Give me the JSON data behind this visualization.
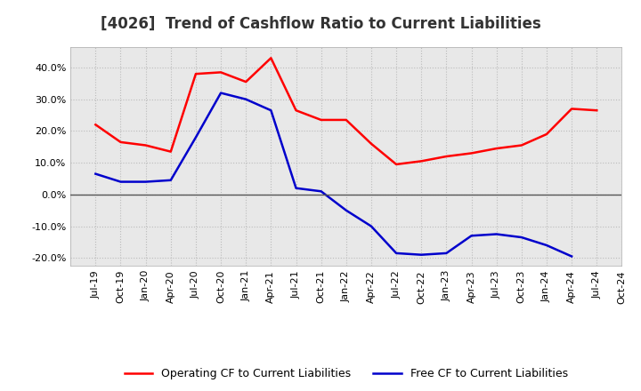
{
  "title": "[4026]  Trend of Cashflow Ratio to Current Liabilities",
  "x_labels": [
    "Jul-19",
    "Oct-19",
    "Jan-20",
    "Apr-20",
    "Jul-20",
    "Oct-20",
    "Jan-21",
    "Apr-21",
    "Jul-21",
    "Oct-21",
    "Jan-22",
    "Apr-22",
    "Jul-22",
    "Oct-22",
    "Jan-23",
    "Apr-23",
    "Jul-23",
    "Oct-23",
    "Jan-24",
    "Apr-24",
    "Jul-24",
    "Oct-24"
  ],
  "operating_cf": [
    0.22,
    0.165,
    0.155,
    0.135,
    0.38,
    0.385,
    0.355,
    0.43,
    0.265,
    0.235,
    0.235,
    0.16,
    0.095,
    0.105,
    0.12,
    0.13,
    0.145,
    0.155,
    0.19,
    0.27,
    0.265,
    null
  ],
  "free_cf": [
    0.065,
    0.04,
    0.04,
    0.045,
    0.18,
    0.32,
    0.3,
    0.265,
    0.02,
    0.01,
    -0.05,
    -0.1,
    -0.185,
    -0.19,
    -0.185,
    -0.13,
    -0.125,
    -0.135,
    -0.16,
    -0.195,
    null,
    null
  ],
  "ylim": [
    -0.225,
    0.465
  ],
  "yticks": [
    -0.2,
    -0.1,
    0.0,
    0.1,
    0.2,
    0.3,
    0.4
  ],
  "operating_color": "#ff0000",
  "free_color": "#0000cc",
  "background_color": "#ffffff",
  "plot_bg_color": "#e8e8e8",
  "grid_color": "#bbbbbb",
  "title_fontsize": 12,
  "tick_fontsize": 8,
  "legend_fontsize": 9
}
